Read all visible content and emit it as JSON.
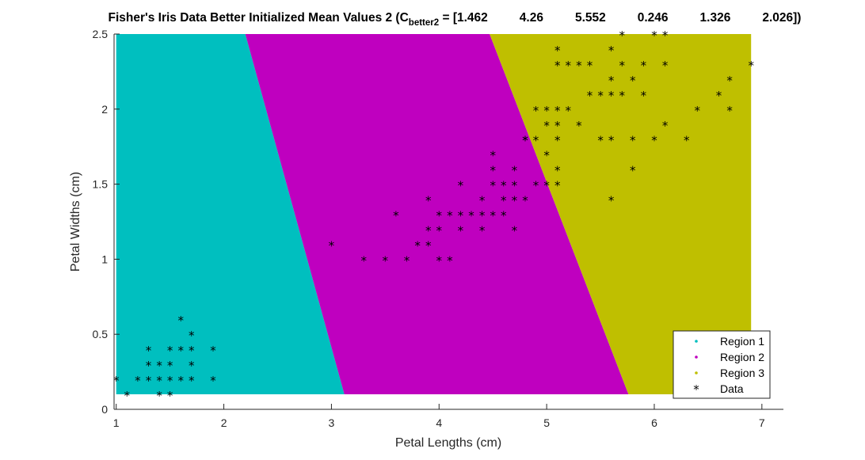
{
  "chart_data": {
    "type": "scatter",
    "title_prefix": "Fisher's Iris Data Better Initialized Mean Values 2 (C",
    "title_subscript": "better2",
    "title_values": [
      "[1.462",
      "4.26",
      "5.552",
      "0.246",
      "1.326",
      "2.026])"
    ],
    "title_eq": " = ",
    "xlabel": "Petal Lengths (cm)",
    "ylabel": "Petal Widths (cm)",
    "xlim": [
      0.98,
      7.2
    ],
    "ylim": [
      0,
      2.5
    ],
    "xticks": [
      1,
      2,
      3,
      4,
      5,
      6,
      7
    ],
    "yticks": [
      0,
      0.5,
      1,
      1.5,
      2,
      2.5
    ],
    "xtick_labels": [
      "1",
      "2",
      "3",
      "4",
      "5",
      "6",
      "7"
    ],
    "ytick_labels": [
      "0",
      "0.5",
      "1",
      "1.5",
      "2",
      "2.5"
    ],
    "grid": false,
    "legend_position": "bottom-right",
    "regions": {
      "x_range": [
        1.0,
        6.9
      ],
      "y_range": [
        0.1,
        2.5
      ],
      "boundary_1_2": [
        [
          2.2,
          2.5
        ],
        [
          3.12,
          0.1
        ]
      ],
      "boundary_2_3": [
        [
          4.47,
          2.5
        ],
        [
          5.76,
          0.1
        ]
      ]
    },
    "series": [
      {
        "name": "Region 1",
        "color": "#00bfbf",
        "marker": "dot"
      },
      {
        "name": "Region 2",
        "color": "#bf00bf",
        "marker": "dot"
      },
      {
        "name": "Region 3",
        "color": "#bfbf00",
        "marker": "dot"
      },
      {
        "name": "Data",
        "color": "#000000",
        "marker": "asterisk"
      }
    ],
    "data_points": [
      [
        1.0,
        0.2
      ],
      [
        1.1,
        0.1
      ],
      [
        1.2,
        0.2
      ],
      [
        1.3,
        0.2
      ],
      [
        1.3,
        0.3
      ],
      [
        1.3,
        0.4
      ],
      [
        1.4,
        0.1
      ],
      [
        1.4,
        0.2
      ],
      [
        1.4,
        0.3
      ],
      [
        1.5,
        0.1
      ],
      [
        1.5,
        0.2
      ],
      [
        1.5,
        0.3
      ],
      [
        1.5,
        0.4
      ],
      [
        1.6,
        0.2
      ],
      [
        1.6,
        0.4
      ],
      [
        1.6,
        0.6
      ],
      [
        1.7,
        0.2
      ],
      [
        1.7,
        0.3
      ],
      [
        1.7,
        0.4
      ],
      [
        1.7,
        0.5
      ],
      [
        1.9,
        0.2
      ],
      [
        1.9,
        0.4
      ],
      [
        3.0,
        1.1
      ],
      [
        3.3,
        1.0
      ],
      [
        3.5,
        1.0
      ],
      [
        3.6,
        1.3
      ],
      [
        3.7,
        1.0
      ],
      [
        3.8,
        1.1
      ],
      [
        3.9,
        1.1
      ],
      [
        3.9,
        1.2
      ],
      [
        3.9,
        1.4
      ],
      [
        4.0,
        1.0
      ],
      [
        4.0,
        1.2
      ],
      [
        4.0,
        1.3
      ],
      [
        4.1,
        1.0
      ],
      [
        4.1,
        1.3
      ],
      [
        4.2,
        1.2
      ],
      [
        4.2,
        1.3
      ],
      [
        4.2,
        1.5
      ],
      [
        4.3,
        1.3
      ],
      [
        4.4,
        1.2
      ],
      [
        4.4,
        1.3
      ],
      [
        4.4,
        1.4
      ],
      [
        4.5,
        1.3
      ],
      [
        4.5,
        1.5
      ],
      [
        4.5,
        1.6
      ],
      [
        4.5,
        1.7
      ],
      [
        4.6,
        1.3
      ],
      [
        4.6,
        1.4
      ],
      [
        4.6,
        1.5
      ],
      [
        4.7,
        1.2
      ],
      [
        4.7,
        1.4
      ],
      [
        4.7,
        1.5
      ],
      [
        4.7,
        1.6
      ],
      [
        4.8,
        1.4
      ],
      [
        4.8,
        1.8
      ],
      [
        4.9,
        1.5
      ],
      [
        5.0,
        1.7
      ],
      [
        5.1,
        1.6
      ],
      [
        4.8,
        1.8
      ],
      [
        4.9,
        1.8
      ],
      [
        4.9,
        2.0
      ],
      [
        5.0,
        1.5
      ],
      [
        5.0,
        1.9
      ],
      [
        5.0,
        2.0
      ],
      [
        5.1,
        1.5
      ],
      [
        5.1,
        1.8
      ],
      [
        5.1,
        1.9
      ],
      [
        5.1,
        2.0
      ],
      [
        5.1,
        2.3
      ],
      [
        5.1,
        2.4
      ],
      [
        5.2,
        2.0
      ],
      [
        5.2,
        2.3
      ],
      [
        5.3,
        1.9
      ],
      [
        5.3,
        2.3
      ],
      [
        5.4,
        2.1
      ],
      [
        5.4,
        2.3
      ],
      [
        5.5,
        1.8
      ],
      [
        5.5,
        2.1
      ],
      [
        5.6,
        1.4
      ],
      [
        5.6,
        1.8
      ],
      [
        5.6,
        2.1
      ],
      [
        5.6,
        2.2
      ],
      [
        5.6,
        2.4
      ],
      [
        5.7,
        2.1
      ],
      [
        5.7,
        2.3
      ],
      [
        5.7,
        2.5
      ],
      [
        5.8,
        1.6
      ],
      [
        5.8,
        1.8
      ],
      [
        5.8,
        2.2
      ],
      [
        5.9,
        2.1
      ],
      [
        5.9,
        2.3
      ],
      [
        6.0,
        1.8
      ],
      [
        6.0,
        2.5
      ],
      [
        6.1,
        1.9
      ],
      [
        6.1,
        2.3
      ],
      [
        6.1,
        2.5
      ],
      [
        6.3,
        1.8
      ],
      [
        6.4,
        2.0
      ],
      [
        6.6,
        2.1
      ],
      [
        6.7,
        2.0
      ],
      [
        6.7,
        2.2
      ],
      [
        6.9,
        2.3
      ]
    ]
  }
}
